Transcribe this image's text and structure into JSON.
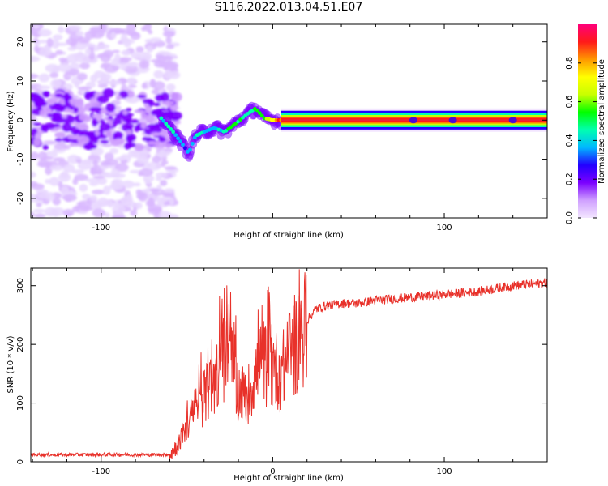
{
  "title": "S116.2022.013.04.51.E07",
  "colors": {
    "snr_line": "#e8312a",
    "spectral_line": "#e8233c",
    "colormap": [
      "#f3e6ff",
      "#cfa0ff",
      "#7a00ff",
      "#2200ff",
      "#00b8ff",
      "#00ffb0",
      "#00ff00",
      "#c8ff00",
      "#ffff00",
      "#ff9900",
      "#ff1a1a",
      "#ff007a"
    ]
  },
  "chart_data": [
    {
      "type": "heatmap",
      "name": "spectrogram",
      "xlabel": "Height of straight line (km)",
      "ylabel": "Frequency (Hz)",
      "xlim": [
        -141,
        160
      ],
      "ylim": [
        -25,
        24.5
      ],
      "x_ticks": [
        -100,
        0,
        100
      ],
      "x_tick_labels": [
        "-100",
        "",
        "100"
      ],
      "y_ticks": [
        -20,
        -10,
        0,
        10,
        20
      ],
      "y_tick_labels": [
        "-20",
        "-10",
        "0",
        "10",
        "20"
      ],
      "colorbar": {
        "label": "Normalized spectral amplitude",
        "range": [
          0,
          1
        ],
        "ticks": [
          0.0,
          0.2,
          0.4,
          0.6,
          0.8
        ],
        "tick_labels": [
          "0.0",
          "0.2",
          "0.4",
          "0.6",
          "0.8"
        ]
      },
      "ridge": {
        "description_points": [
          {
            "x": -65,
            "y": 0.5,
            "amp": 0.4
          },
          {
            "x": -58,
            "y": -3,
            "amp": 0.45
          },
          {
            "x": -52,
            "y": -6.5,
            "amp": 0.35
          },
          {
            "x": -49,
            "y": -8.5,
            "amp": 0.35
          },
          {
            "x": -45,
            "y": -4,
            "amp": 0.4
          },
          {
            "x": -40,
            "y": -3,
            "amp": 0.4
          },
          {
            "x": -34,
            "y": -2,
            "amp": 0.4
          },
          {
            "x": -28,
            "y": -3,
            "amp": 0.45
          },
          {
            "x": -22,
            "y": -1,
            "amp": 0.5
          },
          {
            "x": -15,
            "y": 1.5,
            "amp": 0.45
          },
          {
            "x": -10,
            "y": 3,
            "amp": 0.55
          },
          {
            "x": -5,
            "y": 0.5,
            "amp": 0.55
          },
          {
            "x": 0,
            "y": 0,
            "amp": 0.7
          },
          {
            "x": 5,
            "y": 0,
            "amp": 0.9
          },
          {
            "x": 160,
            "y": 0,
            "amp": 1.0
          }
        ],
        "constant_from_x": 5,
        "constant_frequency": 0
      },
      "noise_region_x": [
        -141,
        -65
      ]
    },
    {
      "type": "line",
      "name": "snr",
      "xlabel": "Height of straight line (km)",
      "ylabel": "SNR (10 * v/v)",
      "xlim": [
        -141,
        160
      ],
      "ylim": [
        0,
        330
      ],
      "x_ticks": [
        -100,
        0,
        100
      ],
      "x_tick_labels": [
        "-100",
        "0",
        "100"
      ],
      "y_ticks": [
        0,
        100,
        200,
        300
      ],
      "y_tick_labels": [
        "0",
        "100",
        "200",
        "300"
      ],
      "series": [
        {
          "x": [
            -141,
            -100,
            -60,
            -55,
            -50,
            -45,
            -40,
            -35,
            -30,
            -25,
            -20,
            -15,
            -10,
            -5,
            0,
            5,
            10,
            15,
            20,
            25,
            30,
            40,
            50,
            60,
            80,
            100,
            120,
            140,
            160
          ],
          "values": [
            12,
            12,
            12,
            30,
            60,
            90,
            110,
            130,
            170,
            180,
            120,
            110,
            150,
            170,
            160,
            150,
            180,
            210,
            240,
            260,
            265,
            270,
            270,
            275,
            280,
            285,
            290,
            300,
            305
          ]
        }
      ]
    }
  ]
}
